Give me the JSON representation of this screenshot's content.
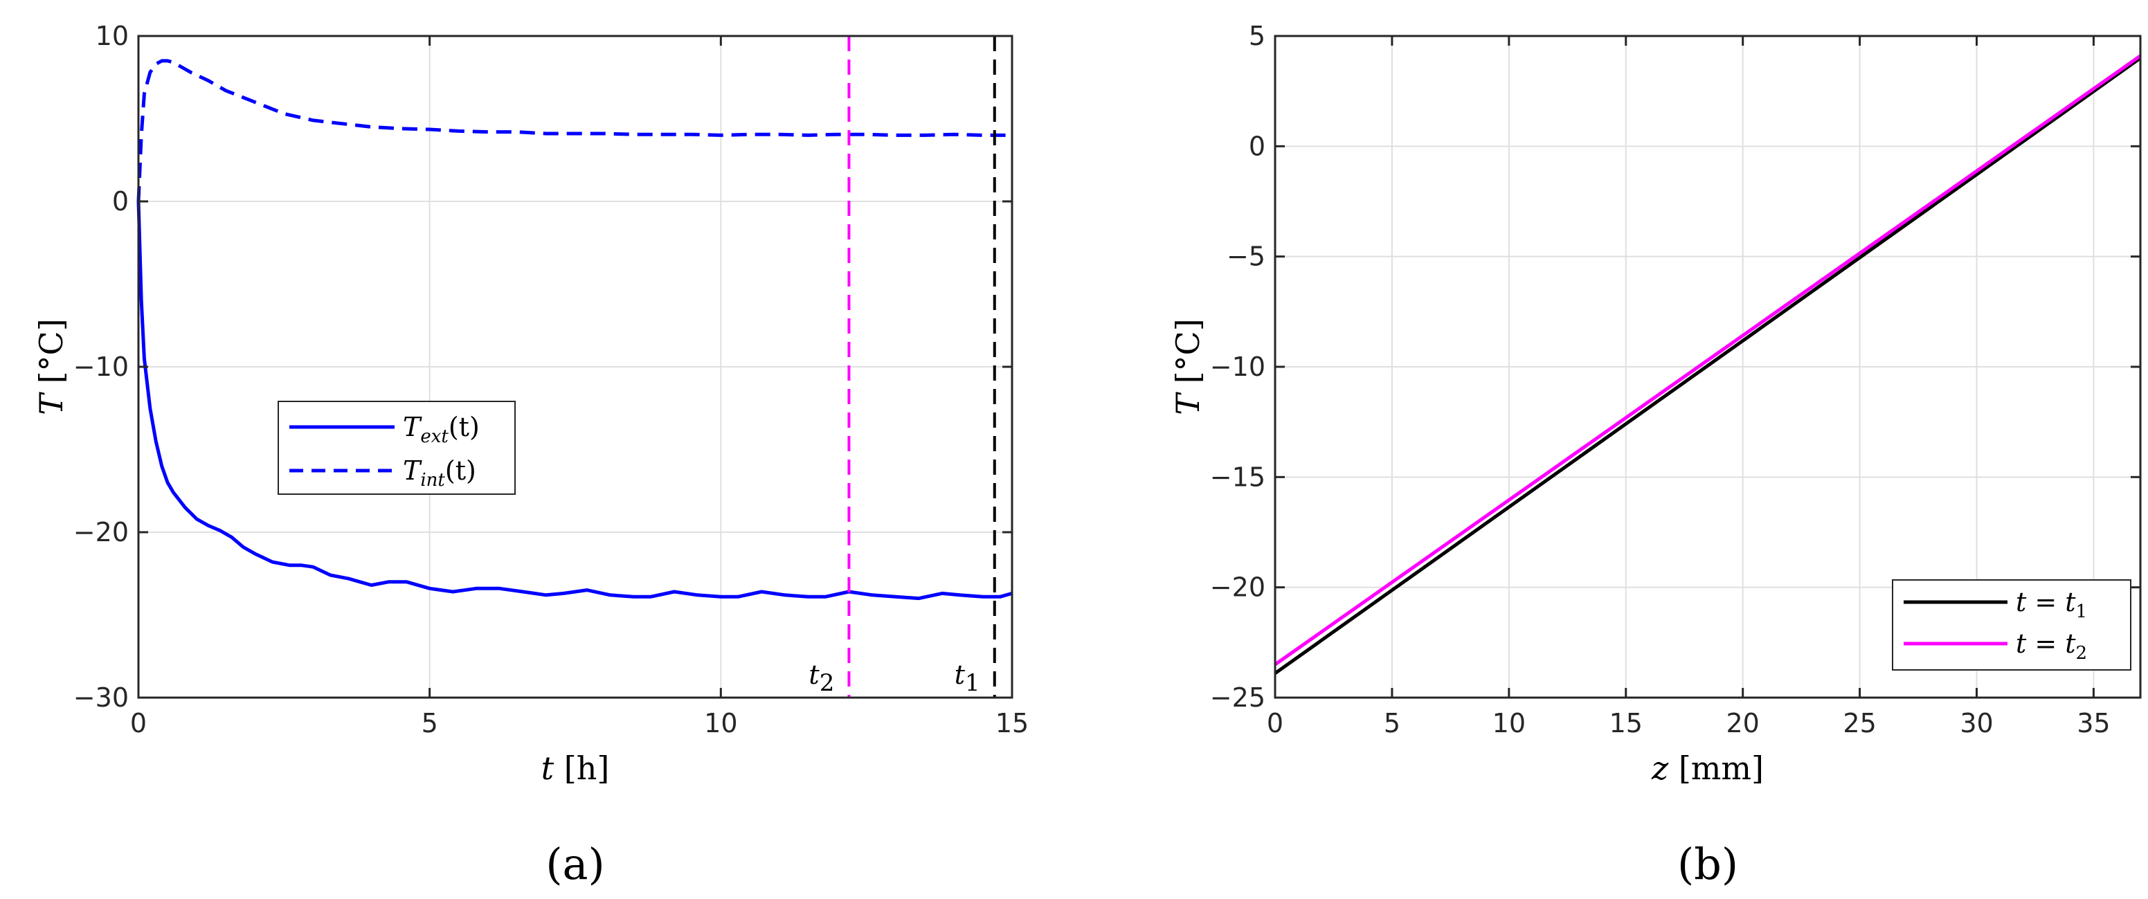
{
  "figure": {
    "panel_a_label": "(a)",
    "panel_b_label": "(b)"
  },
  "chart_data": [
    {
      "type": "line",
      "panel": "(a)",
      "xlabel_var": "t",
      "xlabel_unit": "[h]",
      "ylabel_var": "T",
      "ylabel_unit": "[°C]",
      "xlim": [
        0,
        15
      ],
      "ylim": [
        -30,
        10
      ],
      "xticks": [
        0,
        5,
        10,
        15
      ],
      "yticks": [
        -30,
        -20,
        -10,
        0,
        10
      ],
      "grid": true,
      "legend_position": "center-left",
      "series": [
        {
          "name_base": "T",
          "name_sub": "ext",
          "name_arg": "(t)",
          "color": "#0000ff",
          "style": "solid",
          "x": [
            0,
            0.05,
            0.1,
            0.2,
            0.3,
            0.4,
            0.5,
            0.6,
            0.8,
            1.0,
            1.2,
            1.4,
            1.6,
            1.8,
            2.0,
            2.3,
            2.6,
            2.8,
            3.0,
            3.3,
            3.6,
            4.0,
            4.3,
            4.6,
            5.0,
            5.4,
            5.8,
            6.2,
            6.6,
            7.0,
            7.3,
            7.7,
            8.1,
            8.5,
            8.8,
            9.2,
            9.6,
            10.0,
            10.3,
            10.7,
            11.1,
            11.5,
            11.8,
            12.2,
            12.6,
            13.0,
            13.4,
            13.8,
            14.1,
            14.5,
            14.8,
            15.0
          ],
          "y": [
            0,
            -6,
            -9.5,
            -12.5,
            -14.5,
            -16,
            -17,
            -17.6,
            -18.5,
            -19.2,
            -19.6,
            -19.9,
            -20.3,
            -20.9,
            -21.3,
            -21.8,
            -22.0,
            -22.0,
            -22.1,
            -22.6,
            -22.8,
            -23.2,
            -23.0,
            -23.0,
            -23.4,
            -23.6,
            -23.4,
            -23.4,
            -23.6,
            -23.8,
            -23.7,
            -23.5,
            -23.8,
            -23.9,
            -23.9,
            -23.6,
            -23.8,
            -23.9,
            -23.9,
            -23.6,
            -23.8,
            -23.9,
            -23.9,
            -23.6,
            -23.8,
            -23.9,
            -24.0,
            -23.7,
            -23.8,
            -23.9,
            -23.9,
            -23.7
          ]
        },
        {
          "name_base": "T",
          "name_sub": "int",
          "name_arg": "(t)",
          "color": "#0000ff",
          "style": "dashed",
          "x": [
            0,
            0.05,
            0.1,
            0.2,
            0.3,
            0.4,
            0.5,
            0.6,
            0.7,
            0.9,
            1.2,
            1.5,
            2.0,
            2.5,
            3.0,
            3.5,
            4.0,
            4.5,
            5.0,
            5.5,
            6.0,
            6.5,
            7.0,
            7.5,
            8.0,
            8.5,
            9.0,
            9.5,
            10.0,
            10.5,
            11.0,
            11.5,
            12.0,
            12.5,
            13.0,
            13.5,
            14.0,
            14.5,
            15.0
          ],
          "y": [
            0,
            4,
            6.5,
            7.8,
            8.3,
            8.5,
            8.5,
            8.4,
            8.2,
            7.8,
            7.3,
            6.7,
            6.0,
            5.3,
            4.9,
            4.7,
            4.5,
            4.4,
            4.35,
            4.25,
            4.2,
            4.2,
            4.1,
            4.1,
            4.1,
            4.05,
            4.05,
            4.05,
            4.0,
            4.05,
            4.05,
            4.0,
            4.05,
            4.05,
            4.0,
            4.0,
            4.05,
            4.0,
            4.0
          ]
        }
      ],
      "vlines": [
        {
          "x": 12.2,
          "color": "#ff00ff",
          "style": "dashed",
          "label_base": "t",
          "label_sub": "2"
        },
        {
          "x": 14.7,
          "color": "#000000",
          "style": "dashed",
          "label_base": "t",
          "label_sub": "1"
        }
      ]
    },
    {
      "type": "line",
      "panel": "(b)",
      "xlabel_var": "z",
      "xlabel_unit": "[mm]",
      "ylabel_var": "T",
      "ylabel_unit": "[°C]",
      "xlim": [
        0,
        37
      ],
      "ylim": [
        -25,
        5
      ],
      "xticks": [
        0,
        5,
        10,
        15,
        20,
        25,
        30,
        35
      ],
      "yticks": [
        -25,
        -20,
        -15,
        -10,
        -5,
        0,
        5
      ],
      "grid": true,
      "legend_position": "bottom-right",
      "series": [
        {
          "name_lhs": "t = t",
          "name_sub": "1",
          "color": "#000000",
          "style": "solid",
          "x": [
            0,
            37
          ],
          "y": [
            -23.9,
            4.0
          ]
        },
        {
          "name_lhs": "t = t",
          "name_sub": "2",
          "color": "#ff00ff",
          "style": "solid",
          "x": [
            0,
            37
          ],
          "y": [
            -23.5,
            4.1
          ]
        }
      ]
    }
  ]
}
